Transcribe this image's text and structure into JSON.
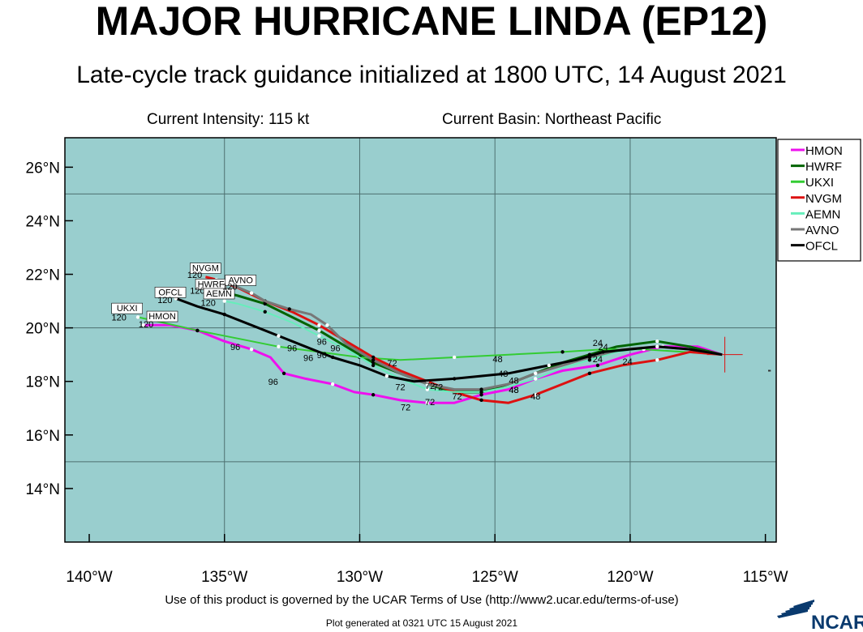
{
  "title": "MAJOR HURRICANE LINDA (EP12)",
  "subtitle": "Late-cycle track guidance initialized at 1800 UTC, 14 August 2021",
  "current_intensity": "Current Intensity: 115 kt",
  "current_basin": "Current Basin: Northeast Pacific",
  "footer": "Use of this product is governed by the UCAR Terms of Use (http://www2.ucar.edu/terms-of-use)",
  "generated": "Plot generated at 0321 UTC   15 August 2021",
  "logo_text": "NCAR",
  "axes": {
    "x_ticks": [
      {
        "lon": -140,
        "label": "140°W"
      },
      {
        "lon": -135,
        "label": "135°W"
      },
      {
        "lon": -130,
        "label": "130°W"
      },
      {
        "lon": -125,
        "label": "125°W"
      },
      {
        "lon": -120,
        "label": "120°W"
      },
      {
        "lon": -115,
        "label": "115°W"
      }
    ],
    "y_ticks": [
      {
        "lat": 14,
        "label": "14°N"
      },
      {
        "lat": 16,
        "label": "16°N"
      },
      {
        "lat": 18,
        "label": "18°N"
      },
      {
        "lat": 20,
        "label": "20°N"
      },
      {
        "lat": 22,
        "label": "22°N"
      },
      {
        "lat": 24,
        "label": "24°N"
      },
      {
        "lat": 26,
        "label": "26°N"
      }
    ],
    "grid_lons": [
      -135,
      -130,
      -125,
      -120
    ],
    "grid_lats": [
      15,
      20,
      25
    ],
    "lon_range": [
      -140.9,
      -114.6
    ],
    "lat_range": [
      12.0,
      27.1
    ]
  },
  "colors": {
    "ocean": "#99cece",
    "grid": "#4d6f6f",
    "HMON": "#ee10ee",
    "HWRF": "#006400",
    "UKXI": "#33cc33",
    "NVGM": "#dd1111",
    "AEMN": "#66eebb",
    "AVNO": "#777777",
    "OFCL": "#000000",
    "storm_marker": "#dd1111"
  },
  "storm_position": {
    "lon": -116.5,
    "lat": 19.0
  },
  "chart_data": {
    "type": "map",
    "series": [
      {
        "name": "HMON",
        "points": [
          [
            -116.6,
            19.0
          ],
          [
            -117.5,
            19.3
          ],
          [
            -118.8,
            19.3
          ],
          [
            -120.0,
            19.0
          ],
          [
            -121.2,
            18.6
          ],
          [
            -122.5,
            18.4
          ],
          [
            -123.5,
            18.1
          ],
          [
            -124.5,
            17.7
          ],
          [
            -125.5,
            17.5
          ],
          [
            -126.5,
            17.2
          ],
          [
            -127.5,
            17.2
          ],
          [
            -128.5,
            17.3
          ],
          [
            -129.5,
            17.5
          ],
          [
            -130.2,
            17.6
          ],
          [
            -131.0,
            17.9
          ],
          [
            -132.0,
            18.1
          ],
          [
            -132.8,
            18.3
          ],
          [
            -133.3,
            18.9
          ],
          [
            -134.0,
            19.2
          ],
          [
            -135.0,
            19.5
          ],
          [
            -136.0,
            19.9
          ],
          [
            -137.0,
            20.1
          ],
          [
            -138.0,
            20.1
          ]
        ],
        "labels": [
          {
            "text": "48",
            "lon": -124.3,
            "lat": 17.6
          },
          {
            "text": "72",
            "lon": -128.3,
            "lat": 16.95
          },
          {
            "text": "96",
            "lon": -133.2,
            "lat": 17.9
          },
          {
            "text": "HMON",
            "lon": -137.3,
            "lat": 20.35,
            "box": true
          },
          {
            "text": "120",
            "lon": -137.9,
            "lat": 20.05
          }
        ]
      },
      {
        "name": "HWRF",
        "points": [
          [
            -116.6,
            19.0
          ],
          [
            -117.8,
            19.3
          ],
          [
            -119.0,
            19.5
          ],
          [
            -120.5,
            19.3
          ],
          [
            -121.5,
            19.0
          ],
          [
            -122.5,
            18.7
          ],
          [
            -123.5,
            18.3
          ],
          [
            -124.5,
            17.9
          ],
          [
            -125.5,
            17.6
          ],
          [
            -126.5,
            17.6
          ],
          [
            -127.5,
            17.9
          ],
          [
            -128.5,
            18.3
          ],
          [
            -129.5,
            18.7
          ],
          [
            -130.5,
            19.3
          ],
          [
            -131.5,
            19.9
          ],
          [
            -132.5,
            20.4
          ],
          [
            -133.5,
            20.9
          ],
          [
            -134.5,
            21.2
          ],
          [
            -135.3,
            21.4
          ]
        ],
        "labels": [
          {
            "text": "HWRF",
            "lon": -135.5,
            "lat": 21.55,
            "box": true
          },
          {
            "text": "120",
            "lon": -136.0,
            "lat": 21.3
          }
        ]
      },
      {
        "name": "UKXI",
        "points": [
          [
            -116.6,
            19.0
          ],
          [
            -118.0,
            19.1
          ],
          [
            -119.5,
            19.2
          ],
          [
            -121.0,
            19.2
          ],
          [
            -122.5,
            19.1
          ],
          [
            -124.5,
            19.0
          ],
          [
            -126.5,
            18.9
          ],
          [
            -128.5,
            18.8
          ],
          [
            -130.0,
            18.9
          ],
          [
            -131.5,
            19.1
          ],
          [
            -133.0,
            19.3
          ],
          [
            -134.5,
            19.6
          ],
          [
            -136.0,
            19.9
          ],
          [
            -137.3,
            20.2
          ],
          [
            -138.2,
            20.4
          ]
        ],
        "labels": [
          {
            "text": "48",
            "lon": -124.9,
            "lat": 18.75
          },
          {
            "text": "UKXI",
            "lon": -138.6,
            "lat": 20.65,
            "box": true
          },
          {
            "text": "120",
            "lon": -138.9,
            "lat": 20.3
          }
        ]
      },
      {
        "name": "NVGM",
        "points": [
          [
            -116.6,
            19.0
          ],
          [
            -117.8,
            19.1
          ],
          [
            -119.0,
            18.8
          ],
          [
            -120.3,
            18.6
          ],
          [
            -121.5,
            18.3
          ],
          [
            -122.5,
            17.9
          ],
          [
            -123.5,
            17.5
          ],
          [
            -124.5,
            17.2
          ],
          [
            -125.5,
            17.3
          ],
          [
            -126.5,
            17.6
          ],
          [
            -127.5,
            18.0
          ],
          [
            -128.5,
            18.4
          ],
          [
            -129.5,
            18.9
          ],
          [
            -130.5,
            19.5
          ],
          [
            -131.5,
            20.1
          ],
          [
            -132.5,
            20.6
          ],
          [
            -133.5,
            21.0
          ],
          [
            -134.5,
            21.5
          ],
          [
            -135.3,
            21.8
          ],
          [
            -135.7,
            21.9
          ]
        ],
        "labels": [
          {
            "text": "24",
            "lon": -120.1,
            "lat": 18.65
          },
          {
            "text": "48",
            "lon": -123.5,
            "lat": 17.35
          },
          {
            "text": "72",
            "lon": -126.4,
            "lat": 17.35
          },
          {
            "text": "96",
            "lon": -130.9,
            "lat": 19.15
          },
          {
            "text": "NVGM",
            "lon": -135.7,
            "lat": 22.15,
            "box": true
          },
          {
            "text": "120",
            "lon": -136.1,
            "lat": 21.9
          }
        ]
      },
      {
        "name": "AEMN",
        "points": [
          [
            -116.6,
            19.0
          ],
          [
            -117.8,
            19.2
          ],
          [
            -119.0,
            19.3
          ],
          [
            -120.5,
            19.1
          ],
          [
            -121.5,
            18.8
          ],
          [
            -122.5,
            18.5
          ],
          [
            -123.5,
            18.1
          ],
          [
            -124.5,
            17.8
          ],
          [
            -125.5,
            17.6
          ],
          [
            -126.5,
            17.6
          ],
          [
            -127.5,
            17.7
          ],
          [
            -128.5,
            18.1
          ],
          [
            -129.5,
            18.6
          ],
          [
            -130.5,
            19.2
          ],
          [
            -131.5,
            19.7
          ],
          [
            -132.5,
            20.2
          ],
          [
            -133.5,
            20.6
          ],
          [
            -134.5,
            20.9
          ],
          [
            -135.0,
            21.0
          ]
        ],
        "labels": [
          {
            "text": "AEMN",
            "lon": -135.2,
            "lat": 21.2,
            "box": true
          },
          {
            "text": "120",
            "lon": -135.6,
            "lat": 20.85
          }
        ]
      },
      {
        "name": "AVNO",
        "points": [
          [
            -116.6,
            19.0
          ],
          [
            -117.8,
            19.2
          ],
          [
            -119.0,
            19.3
          ],
          [
            -120.3,
            19.2
          ],
          [
            -121.5,
            18.9
          ],
          [
            -122.5,
            18.6
          ],
          [
            -123.5,
            18.3
          ],
          [
            -124.5,
            17.9
          ],
          [
            -125.5,
            17.7
          ],
          [
            -126.5,
            17.7
          ],
          [
            -127.5,
            17.9
          ],
          [
            -128.5,
            18.3
          ],
          [
            -129.5,
            18.8
          ],
          [
            -130.5,
            19.4
          ],
          [
            -131.2,
            20.1
          ],
          [
            -131.8,
            20.5
          ],
          [
            -132.6,
            20.7
          ],
          [
            -133.5,
            21.0
          ],
          [
            -134.0,
            21.3
          ],
          [
            -134.7,
            21.6
          ]
        ],
        "labels": [
          {
            "text": "AVNO",
            "lon": -134.4,
            "lat": 21.7,
            "box": true
          },
          {
            "text": "120",
            "lon": -134.8,
            "lat": 21.45
          }
        ]
      },
      {
        "name": "OFCL",
        "points": [
          [
            -116.6,
            19.0
          ],
          [
            -117.8,
            19.2
          ],
          [
            -119.0,
            19.3
          ],
          [
            -120.0,
            19.2
          ],
          [
            -121.0,
            19.1
          ],
          [
            -122.0,
            18.8
          ],
          [
            -123.0,
            18.6
          ],
          [
            -124.5,
            18.3
          ],
          [
            -126.5,
            18.1
          ],
          [
            -128.0,
            18.0
          ],
          [
            -129.0,
            18.2
          ],
          [
            -130.0,
            18.6
          ],
          [
            -131.0,
            18.9
          ],
          [
            -132.0,
            19.3
          ],
          [
            -133.0,
            19.7
          ],
          [
            -134.0,
            20.1
          ],
          [
            -135.0,
            20.5
          ],
          [
            -136.0,
            20.8
          ],
          [
            -136.8,
            21.1
          ]
        ],
        "labels": [
          {
            "text": "24",
            "lon": -121.0,
            "lat": 19.2
          },
          {
            "text": "48",
            "lon": -124.7,
            "lat": 18.2
          },
          {
            "text": "72",
            "lon": -128.5,
            "lat": 17.7
          },
          {
            "text": "96",
            "lon": -131.9,
            "lat": 18.8
          },
          {
            "text": "OFCL",
            "lon": -137.0,
            "lat": 21.25,
            "box": true
          },
          {
            "text": "120",
            "lon": -137.2,
            "lat": 20.95
          }
        ]
      }
    ],
    "extra_labels": [
      {
        "text": "24",
        "lon": -121.2,
        "lat": 19.35
      },
      {
        "text": "24",
        "lon": -121.2,
        "lat": 18.75
      },
      {
        "text": "48",
        "lon": -124.3,
        "lat": 17.95
      },
      {
        "text": "48",
        "lon": -124.3,
        "lat": 17.6
      },
      {
        "text": "72",
        "lon": -128.8,
        "lat": 18.6
      },
      {
        "text": "72",
        "lon": -127.4,
        "lat": 17.75
      },
      {
        "text": "72",
        "lon": -127.1,
        "lat": 17.7
      },
      {
        "text": "72",
        "lon": -127.4,
        "lat": 17.15
      },
      {
        "text": "96",
        "lon": -131.4,
        "lat": 19.4
      },
      {
        "text": "96",
        "lon": -131.4,
        "lat": 18.9
      },
      {
        "text": "96",
        "lon": -134.6,
        "lat": 19.2
      },
      {
        "text": "96",
        "lon": -132.5,
        "lat": 19.15
      }
    ]
  }
}
